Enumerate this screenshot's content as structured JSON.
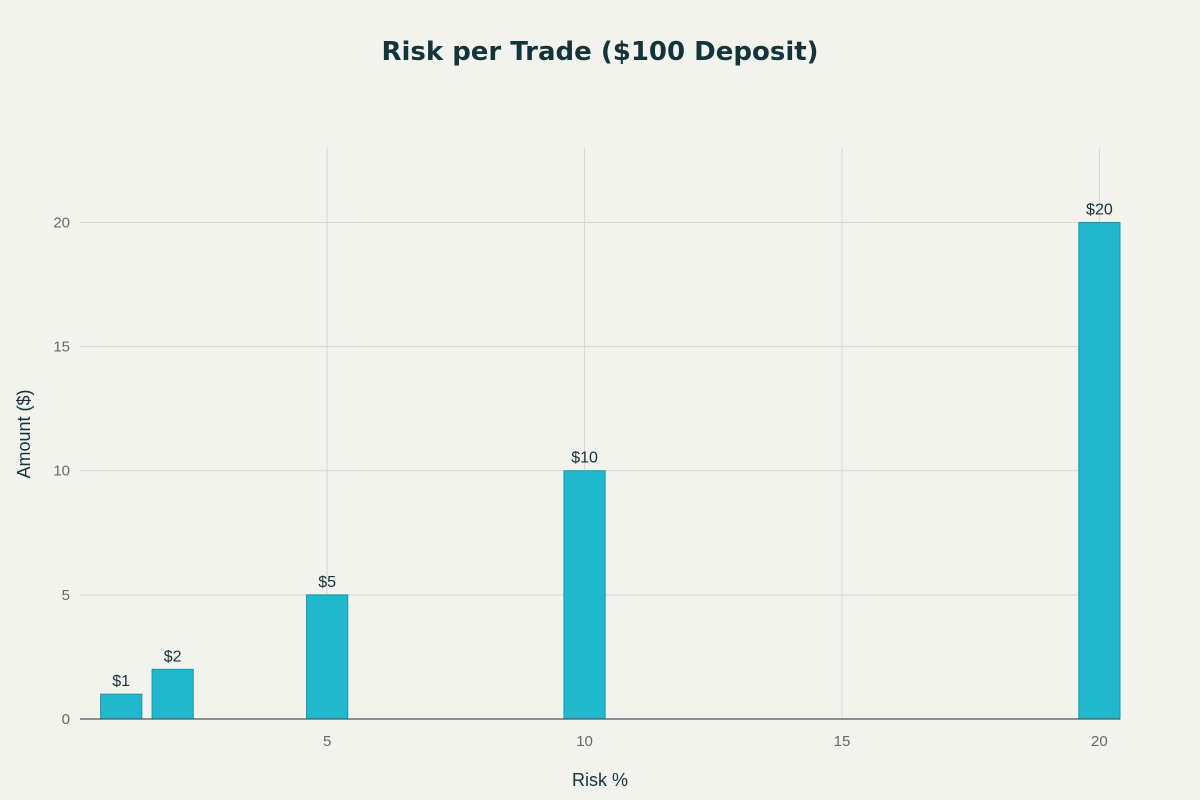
{
  "chart_data": {
    "type": "bar",
    "title": "Risk per Trade ($100 Deposit)",
    "xlabel": "Risk %",
    "ylabel": "Amount ($)",
    "x": [
      1,
      2,
      5,
      10,
      20
    ],
    "values": [
      1,
      2,
      5,
      10,
      20
    ],
    "data_labels": [
      "$1",
      "$2",
      "$5",
      "$10",
      "$20"
    ],
    "xlim": [
      0.2,
      20.4
    ],
    "ylim": [
      0,
      23
    ],
    "x_ticks": [
      5,
      10,
      15,
      20
    ],
    "y_ticks": [
      0,
      5,
      10,
      15,
      20
    ],
    "bar_width": 0.8,
    "grid": true,
    "colors": {
      "bar": "#21b8cd",
      "background": "#f3f3ee",
      "title": "#13343b"
    }
  }
}
